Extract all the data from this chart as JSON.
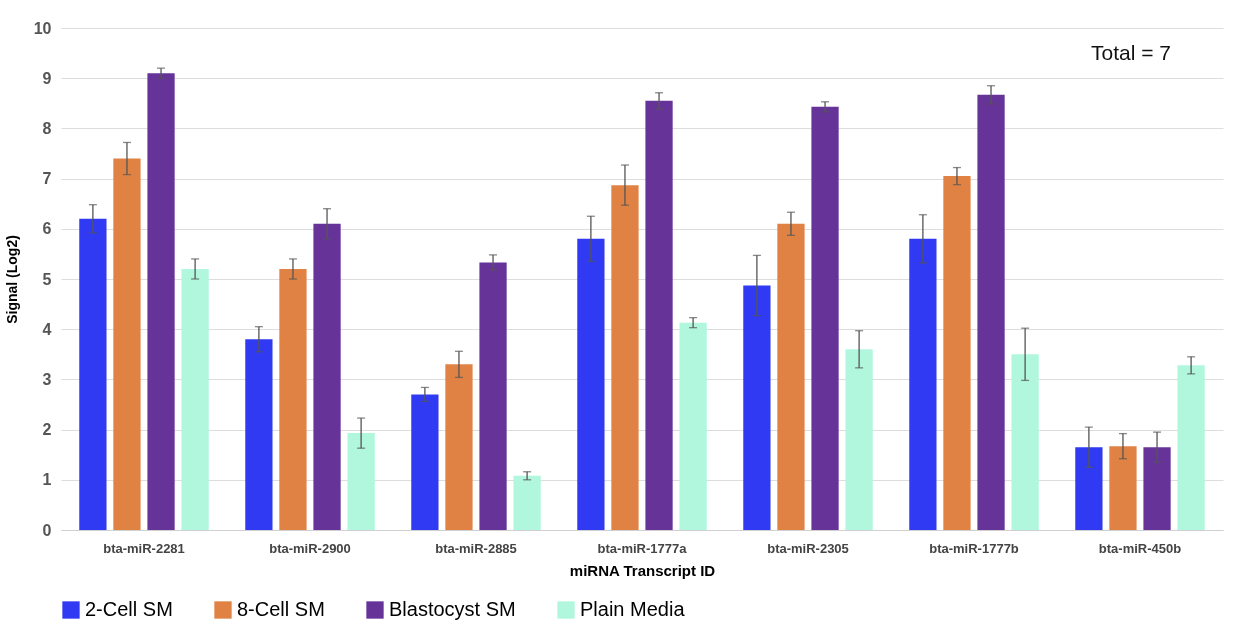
{
  "chart_data": {
    "type": "bar",
    "xlabel": "miRNA Transcript ID",
    "ylabel": "Signal (Log2)",
    "categories": [
      "bta-miR-2281",
      "bta-miR-2900",
      "bta-miR-2885",
      "bta-miR-1777a",
      "bta-miR-2305",
      "bta-miR-1777b",
      "bta-miR-450b"
    ],
    "series": [
      {
        "name": "2-Cell SM",
        "color": "#2f3af2",
        "values": [
          6.2,
          3.8,
          2.7,
          5.8,
          4.87,
          5.8,
          1.65
        ],
        "errors": [
          0.28,
          0.25,
          0.14,
          0.45,
          0.6,
          0.48,
          0.4
        ]
      },
      {
        "name": "8-Cell SM",
        "color": "#e08244",
        "values": [
          7.4,
          5.2,
          3.3,
          6.87,
          6.1,
          7.05,
          1.67
        ],
        "errors": [
          0.32,
          0.2,
          0.26,
          0.4,
          0.23,
          0.17,
          0.25
        ]
      },
      {
        "name": "Blastocyst SM",
        "color": "#663399",
        "values": [
          9.1,
          6.1,
          5.33,
          8.55,
          8.43,
          8.67,
          1.65
        ],
        "errors": [
          0.1,
          0.3,
          0.15,
          0.16,
          0.1,
          0.18,
          0.3
        ]
      },
      {
        "name": "Plain Media",
        "color": "#b0f7de",
        "values": [
          5.2,
          1.93,
          1.08,
          4.13,
          3.6,
          3.5,
          3.28
        ],
        "errors": [
          0.2,
          0.3,
          0.08,
          0.1,
          0.37,
          0.52,
          0.17
        ]
      }
    ],
    "ylim": [
      0,
      10
    ],
    "yticks": [
      0,
      1,
      2,
      3,
      4,
      5,
      6,
      7,
      8,
      9,
      10
    ],
    "grid": "y",
    "legend": "bottom",
    "annotations": [
      "Total = 7"
    ]
  }
}
